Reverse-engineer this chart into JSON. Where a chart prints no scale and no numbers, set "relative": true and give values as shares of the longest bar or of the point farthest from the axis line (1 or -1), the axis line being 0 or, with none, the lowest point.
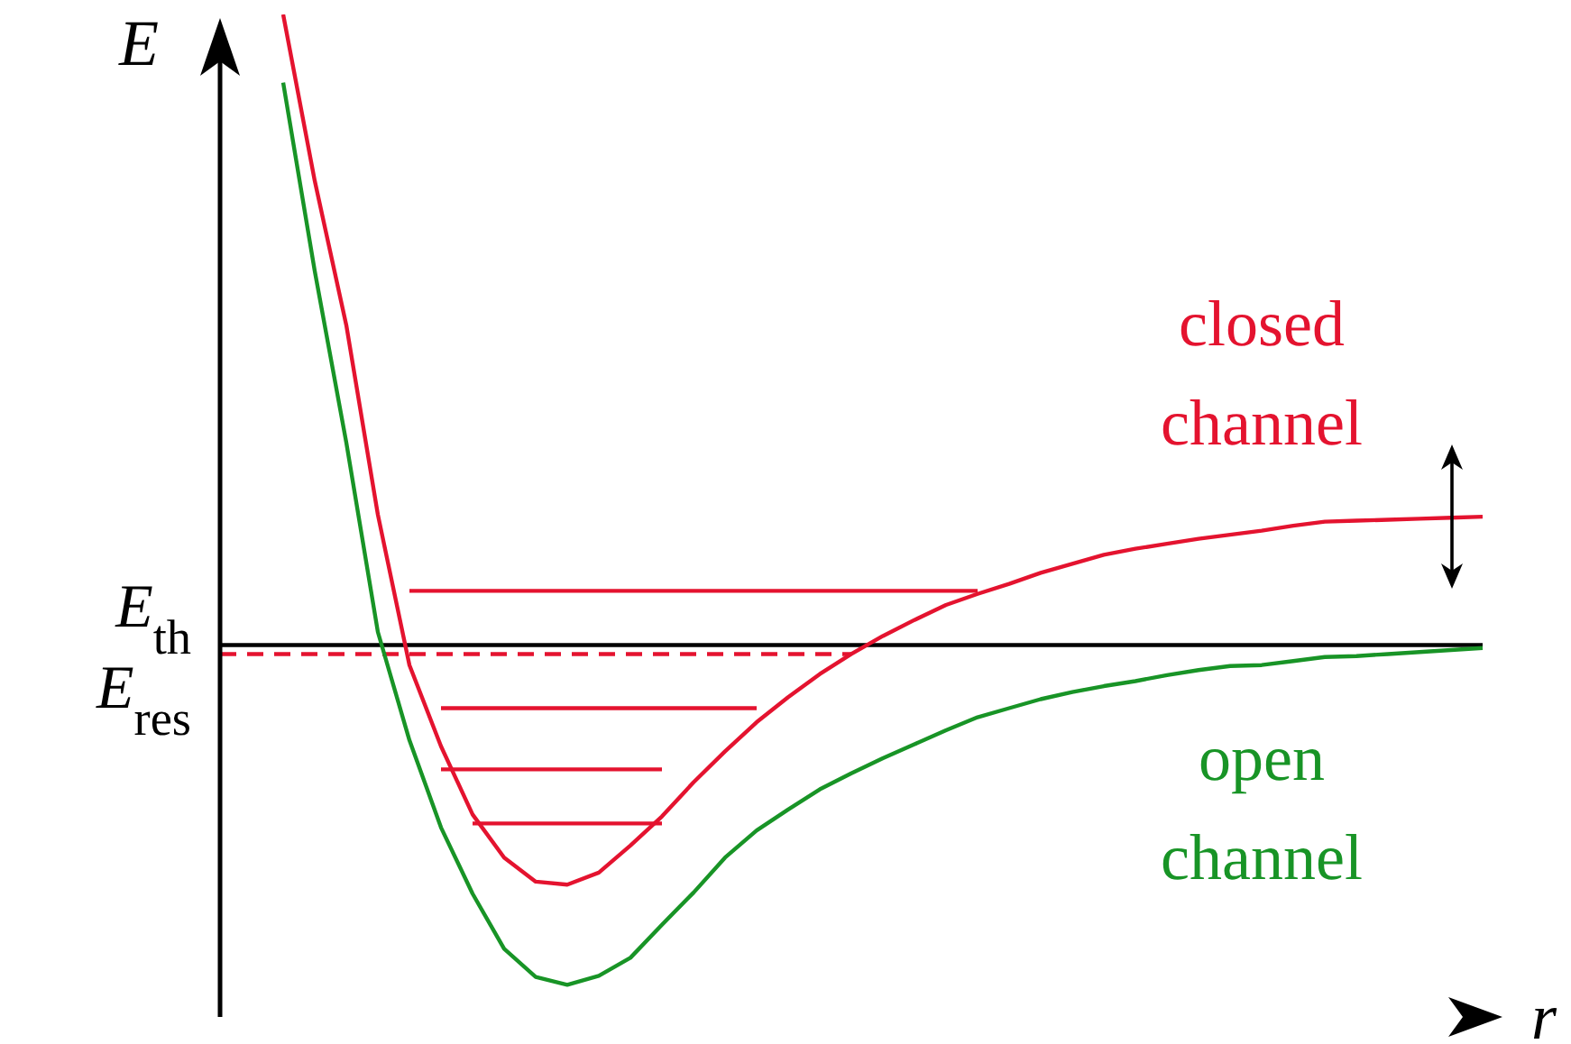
{
  "chart_data": {
    "type": "line",
    "relative": true,
    "ylabel": "E",
    "xlabel": "r",
    "categories": [
      null,
      null,
      null,
      null,
      null,
      null,
      null,
      null,
      null,
      null,
      null,
      null,
      null,
      null,
      null,
      null,
      null,
      null,
      null,
      null,
      null,
      null,
      null,
      null,
      null,
      null,
      null,
      null,
      null,
      null,
      null,
      null,
      null,
      null,
      null,
      null,
      null,
      null,
      null,
      null,
      null
    ],
    "series": [
      {
        "name": "closed channel",
        "color": "#e4132f",
        "values": [
          null,
          null,
          1,
          0.834,
          0.69,
          0.501,
          0.351,
          0.27,
          0.202,
          0.159,
          0.135,
          0.132,
          0.144,
          0.171,
          0.2,
          0.234,
          0.265,
          0.294,
          0.319,
          0.342,
          0.362,
          0.38,
          0.396,
          0.411,
          0.422,
          0.432,
          0.443,
          0.452,
          0.461,
          0.467,
          0.472,
          0.477,
          0.481,
          0.485,
          0.49,
          0.494,
          0.495,
          0.496,
          0.497,
          0.498,
          0.499
        ]
      },
      {
        "name": "open channel",
        "color": "#189426",
        "values": [
          null,
          null,
          0.932,
          0.744,
          0.573,
          0.384,
          0.276,
          0.189,
          0.123,
          0.068,
          0.04,
          0.032,
          0.041,
          0.059,
          0.092,
          0.124,
          0.159,
          0.186,
          0.207,
          0.227,
          0.243,
          0.258,
          0.272,
          0.286,
          0.299,
          0.308,
          0.317,
          0.324,
          0.33,
          0.335,
          0.341,
          0.346,
          0.35,
          0.351,
          0.355,
          0.359,
          0.36,
          0.362,
          0.364,
          0.366,
          0.368
        ]
      },
      {
        "type": "line",
        "color": "#e4132f",
        "values": [
          null,
          null,
          null,
          null,
          null,
          null,
          0.425,
          0.425,
          0.425,
          0.425,
          0.425,
          0.425,
          0.425,
          0.425,
          0.425,
          0.425,
          0.425,
          0.425,
          0.425,
          0.425,
          0.425,
          0.425,
          0.425,
          0.425,
          0.425,
          null,
          null,
          null,
          null,
          null,
          null,
          null,
          null,
          null,
          null,
          null,
          null,
          null,
          null,
          null,
          null
        ]
      },
      {
        "type": "line",
        "color": "#e4132f",
        "line_style": "dashed",
        "values": [
          0.362,
          0.362,
          0.362,
          0.362,
          0.362,
          0.362,
          0.362,
          0.362,
          0.362,
          0.362,
          0.362,
          0.362,
          0.362,
          0.362,
          0.362,
          0.362,
          0.362,
          0.362,
          0.362,
          0.362,
          0.362,
          null,
          null,
          null,
          null,
          null,
          null,
          null,
          null,
          null,
          null,
          null,
          null,
          null,
          null,
          null,
          null,
          null,
          null,
          null,
          null
        ]
      },
      {
        "type": "line",
        "color": "#e4132f",
        "values": [
          null,
          null,
          null,
          null,
          null,
          null,
          null,
          0.308,
          0.308,
          0.308,
          0.308,
          0.308,
          0.308,
          0.308,
          0.308,
          0.308,
          0.308,
          0.308,
          null,
          null,
          null,
          null,
          null,
          null,
          null,
          null,
          null,
          null,
          null,
          null,
          null,
          null,
          null,
          null,
          null,
          null,
          null,
          null,
          null,
          null,
          null
        ]
      },
      {
        "type": "line",
        "color": "#e4132f",
        "values": [
          null,
          null,
          null,
          null,
          null,
          null,
          null,
          0.247,
          0.247,
          0.247,
          0.247,
          0.247,
          0.247,
          0.247,
          0.247,
          null,
          null,
          null,
          null,
          null,
          null,
          null,
          null,
          null,
          null,
          null,
          null,
          null,
          null,
          null,
          null,
          null,
          null,
          null,
          null,
          null,
          null,
          null,
          null,
          null,
          null
        ]
      },
      {
        "type": "line",
        "color": "#e4132f",
        "values": [
          null,
          null,
          null,
          null,
          null,
          null,
          null,
          null,
          0.193,
          0.193,
          0.193,
          0.193,
          0.193,
          0.193,
          0.193,
          null,
          null,
          null,
          null,
          null,
          null,
          null,
          null,
          null,
          null,
          null,
          null,
          null,
          null,
          null,
          null,
          null,
          null,
          null,
          null,
          null,
          null,
          null,
          null,
          null,
          null
        ]
      }
    ],
    "annotations": [
      "E$_{res}$"
    ],
    "ref_lines": [
      {
        "axis": "y",
        "value": 0.371,
        "label": "E$_{th}$",
        "color": "#000000"
      }
    ]
  }
}
